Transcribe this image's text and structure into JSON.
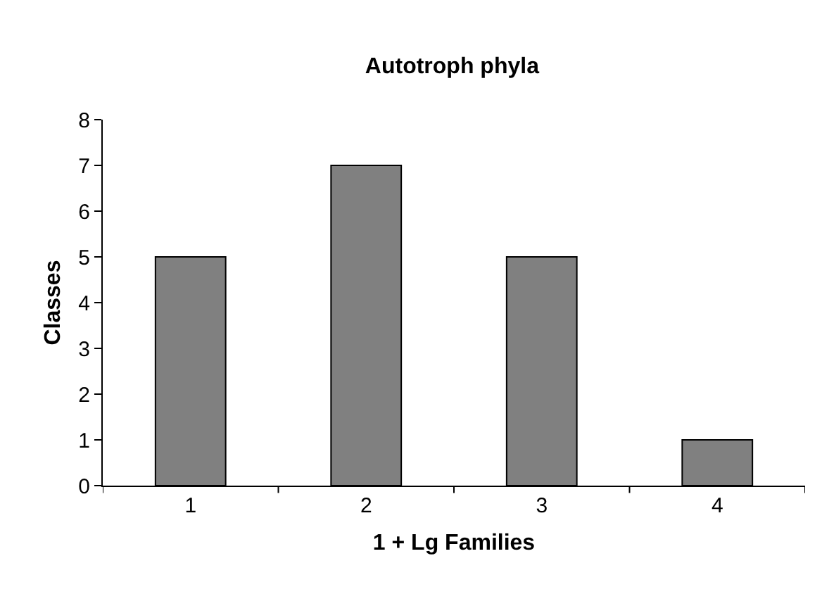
{
  "chart_data": {
    "type": "bar",
    "title": "Autotroph phyla",
    "xlabel": "1 + Lg Families",
    "ylabel": "Classes",
    "categories": [
      "1",
      "2",
      "3",
      "4"
    ],
    "values": [
      5,
      7,
      5,
      1
    ],
    "color": "#808080",
    "ylim": [
      0,
      8
    ],
    "yticks": [
      0,
      1,
      2,
      3,
      4,
      5,
      6,
      7,
      8
    ]
  }
}
